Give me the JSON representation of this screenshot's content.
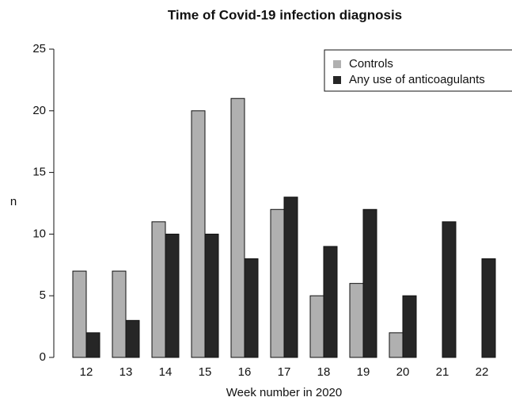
{
  "chart_data": {
    "type": "bar",
    "title": "Time of Covid-19 infection diagnosis",
    "x_label": "Week number in 2020",
    "y_label": "n",
    "categories": [
      "12",
      "13",
      "14",
      "15",
      "16",
      "17",
      "18",
      "19",
      "20",
      "21",
      "22"
    ],
    "series": [
      {
        "name": "Controls",
        "color": "#b0b0b0",
        "values": [
          7,
          7,
          11,
          20,
          21,
          12,
          5,
          6,
          2,
          0,
          0
        ]
      },
      {
        "name": "Any use of anticoagulants",
        "color": "#262626",
        "values": [
          2,
          3,
          10,
          10,
          8,
          13,
          9,
          12,
          5,
          11,
          8
        ]
      }
    ],
    "ylim": [
      0,
      25
    ],
    "yticks": [
      0,
      5,
      10,
      15,
      20,
      25
    ],
    "legend": "topright"
  }
}
